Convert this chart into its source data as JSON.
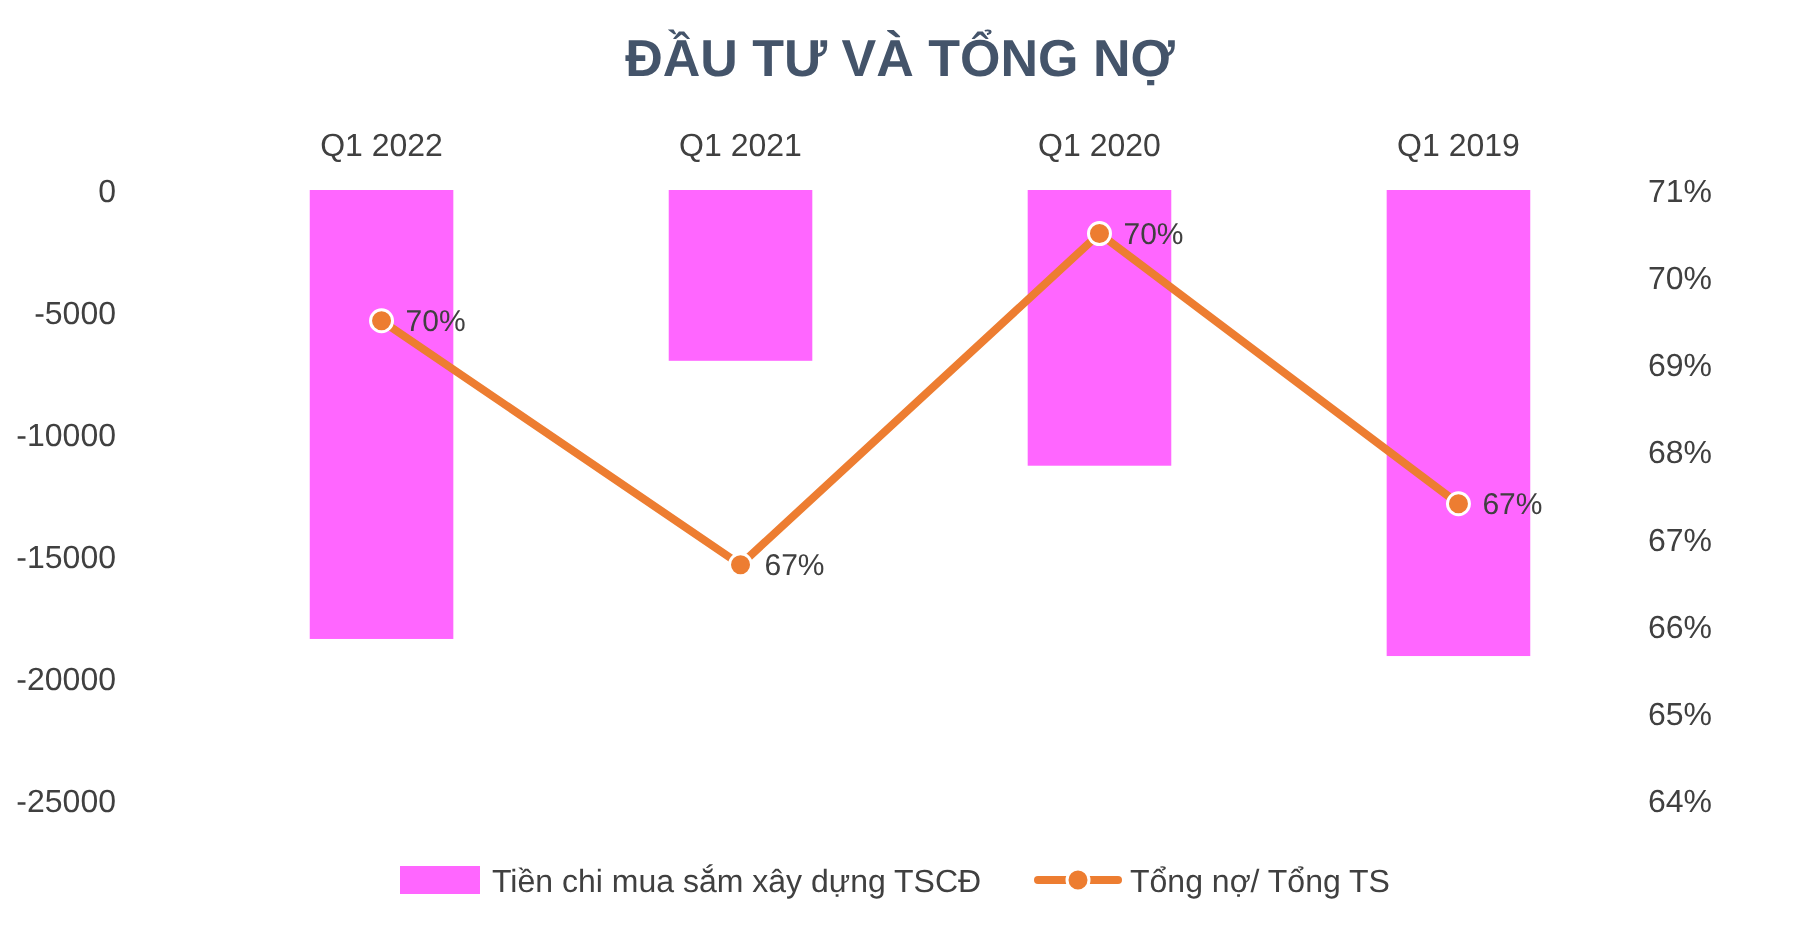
{
  "chart_data": {
    "type": "bar",
    "title": "ĐẦU TƯ VÀ TỔNG NỢ",
    "categories": [
      "Q1 2022",
      "Q1 2021",
      "Q1 2020",
      "Q1 2019"
    ],
    "series": [
      {
        "name": "Tiền chi mua sắm xây dựng TSCĐ",
        "color": "#ff66ff",
        "values": [
          -18400,
          -7000,
          -11300,
          -19100
        ]
      },
      {
        "name": "Tổng nợ/ Tổng TS",
        "type": "line",
        "axis": "y2",
        "color": "#ed7d31",
        "values": [
          69.5,
          66.7,
          70.5,
          67.4
        ],
        "value_labels": [
          "70%",
          "67%",
          "70%",
          "67%"
        ]
      }
    ],
    "ylim": [
      -25000,
      0
    ],
    "yticks": [
      0,
      -5000,
      -10000,
      -15000,
      -20000,
      -25000
    ],
    "y2lim": [
      64,
      71
    ],
    "y2ticks": [
      {
        "value": 71,
        "label": "71%"
      },
      {
        "value": 70,
        "label": "70%"
      },
      {
        "value": 69,
        "label": "69%"
      },
      {
        "value": 68,
        "label": "68%"
      },
      {
        "value": 67,
        "label": "67%"
      },
      {
        "value": 66,
        "label": "66%"
      },
      {
        "value": 65,
        "label": "65%"
      },
      {
        "value": 64,
        "label": "64%"
      }
    ],
    "marker": "circle",
    "legend": "bottom"
  }
}
